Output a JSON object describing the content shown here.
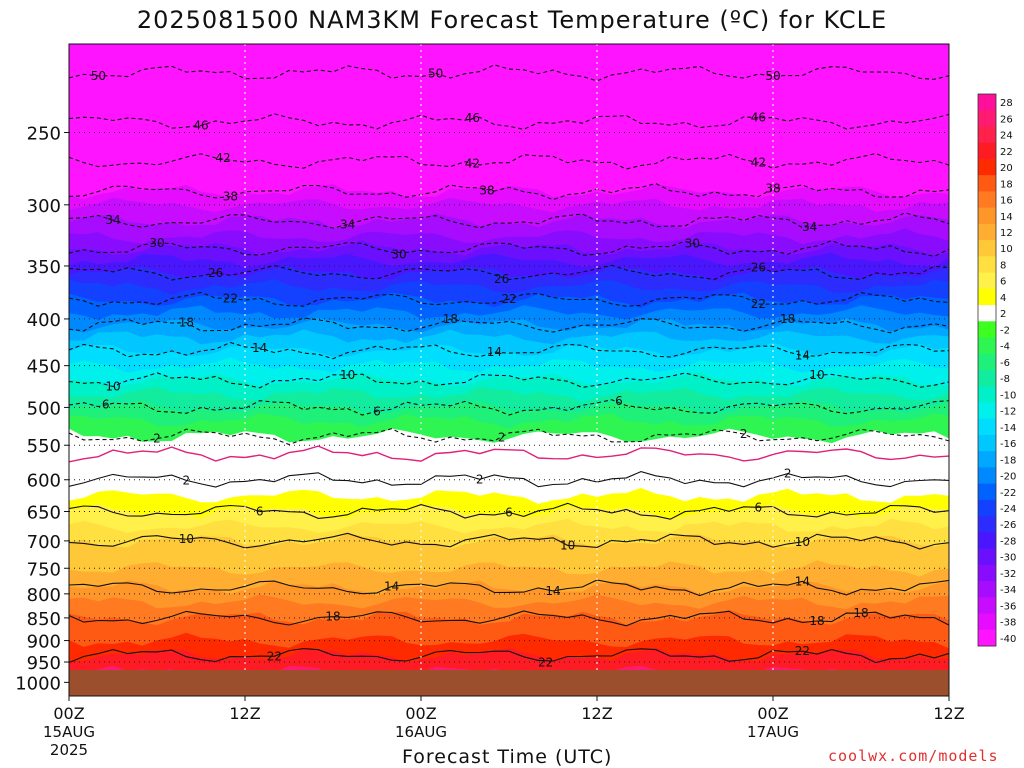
{
  "header": {
    "title": "2025081500 NAM3KM Forecast Temperature (ºC) for KCLE"
  },
  "footer": {
    "credit": "coolwx.com/models"
  },
  "colors": {
    "background": "#ffffff",
    "ground": "#9b4f2c",
    "freezing_line": "#e0207a",
    "credit": "#e03030"
  },
  "chart_data": {
    "type": "heatmap",
    "title": "2025081500 NAM3KM Forecast Temperature (ºC) for KCLE",
    "xlabel": "Forecast Time (UTC)",
    "ylabel": "",
    "x_range_hours": [
      0,
      60
    ],
    "y_axis": {
      "scale": "log-pressure",
      "ticks": [
        250,
        300,
        350,
        400,
        450,
        500,
        550,
        600,
        650,
        700,
        750,
        800,
        850,
        900,
        950,
        1000
      ],
      "top": 200,
      "bottom": 1035
    },
    "x_ticks": [
      {
        "hour": 0,
        "label": "00Z",
        "sub": "15AUG",
        "sub2": "2025"
      },
      {
        "hour": 12,
        "label": "12Z",
        "sub": "",
        "sub2": ""
      },
      {
        "hour": 24,
        "label": "00Z",
        "sub": "16AUG",
        "sub2": ""
      },
      {
        "hour": 36,
        "label": "12Z",
        "sub": "",
        "sub2": ""
      },
      {
        "hour": 48,
        "label": "00Z",
        "sub": "17AUG",
        "sub2": ""
      },
      {
        "hour": 60,
        "label": "12Z",
        "sub": "",
        "sub2": ""
      }
    ],
    "grid": true,
    "temperature_profile": {
      "pressure_hpa": [
        200,
        230,
        250,
        275,
        300,
        325,
        350,
        375,
        400,
        425,
        450,
        475,
        500,
        525,
        550,
        575,
        600,
        625,
        650,
        675,
        700,
        725,
        750,
        775,
        800,
        850,
        900,
        950,
        1000
      ],
      "temperature_c": [
        -52,
        -48,
        -45,
        -41,
        -36,
        -32,
        -27,
        -23,
        -19,
        -15,
        -12,
        -9,
        -6,
        -3,
        -1,
        1,
        2,
        4,
        6,
        8,
        10,
        11,
        12,
        13,
        15,
        18,
        20,
        23,
        25
      ]
    },
    "contour_levels": [
      -50,
      -46,
      -42,
      -38,
      -34,
      -30,
      -26,
      -22,
      -18,
      -14,
      -10,
      -6,
      -2,
      2,
      6,
      10,
      14,
      18,
      22
    ],
    "contour_labels": [
      {
        "v": "50",
        "h": [
          2,
          25,
          48
        ]
      },
      {
        "v": "46",
        "h": [
          9,
          27.5,
          47
        ]
      },
      {
        "v": "42",
        "h": [
          10.5,
          27.5,
          47
        ]
      },
      {
        "v": "38",
        "h": [
          11,
          28.5,
          48
        ]
      },
      {
        "v": "34",
        "h": [
          3,
          19,
          50.5
        ]
      },
      {
        "v": "30",
        "h": [
          6,
          22.5,
          42.5
        ]
      },
      {
        "v": "26",
        "h": [
          10,
          29.5,
          47
        ]
      },
      {
        "v": "22",
        "h": [
          11,
          30,
          47
        ]
      },
      {
        "v": "18",
        "h": [
          8,
          26,
          49
        ]
      },
      {
        "v": "14",
        "h": [
          13,
          29,
          50
        ]
      },
      {
        "v": "10",
        "h": [
          3,
          19,
          51
        ]
      },
      {
        "v": "6",
        "h": [
          2.5,
          21,
          37.5
        ]
      },
      {
        "v": "2",
        "h": [
          6,
          29.5,
          46
        ]
      },
      {
        "v": "2",
        "h": [
          8,
          28,
          49
        ]
      },
      {
        "v": "6",
        "h": [
          13,
          30,
          47
        ]
      },
      {
        "v": "10",
        "h": [
          8,
          34,
          50
        ]
      },
      {
        "v": "14",
        "h": [
          22,
          33,
          50
        ]
      },
      {
        "v": "18",
        "h": [
          18,
          51,
          54
        ]
      },
      {
        "v": "22",
        "h": [
          14,
          32.5,
          50
        ]
      }
    ],
    "colorbar": {
      "labels": [
        28,
        26,
        24,
        22,
        20,
        18,
        16,
        14,
        12,
        10,
        8,
        6,
        4,
        2,
        -2,
        -4,
        -6,
        -8,
        -10,
        -12,
        -14,
        -16,
        -18,
        -20,
        -22,
        -24,
        -26,
        -28,
        -30,
        -32,
        -34,
        -36,
        -38,
        -40
      ],
      "colors": [
        "#ff0f9a",
        "#ff1a72",
        "#ff204c",
        "#ff1b24",
        "#ff2a00",
        "#ff5a14",
        "#ff7a20",
        "#ff962a",
        "#ffae32",
        "#ffc838",
        "#ffe040",
        "#fff04a",
        "#ffff00",
        "#ffffff",
        "#3cff20",
        "#2ef552",
        "#1ef07a",
        "#12ec9e",
        "#00f0c8",
        "#00f0ec",
        "#00ddff",
        "#00c8ff",
        "#00a9ff",
        "#0088ff",
        "#0062ff",
        "#1440ff",
        "#2d2cff",
        "#4a16ff",
        "#6a10ff",
        "#8a0cff",
        "#a80cff",
        "#c80cff",
        "#e60cff",
        "#ff14ff"
      ]
    }
  }
}
